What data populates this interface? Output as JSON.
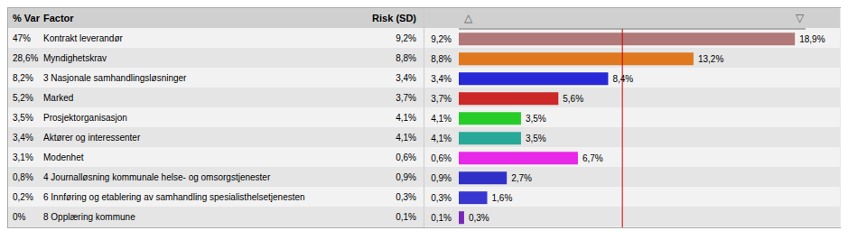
{
  "chart_data": {
    "type": "bar",
    "orientation": "horizontal",
    "columns": [
      "% Var",
      "Factor",
      "Risk (SD)"
    ],
    "header_marks": [
      "△",
      "▽"
    ],
    "categories": [
      "Kontrakt leverandør",
      "Myndighetskrav",
      "3 Nasjonale samhandlingsløsninger",
      "Marked",
      "Prosjektorganisasjon",
      "Aktører og interessenter",
      "Modenhet",
      "4 Journalløsning kommunale helse- og omsorgstjenester",
      "6 Innføring og etablering av samhandling spesialisthelsetjenesten",
      "8 Opplæring kommune"
    ],
    "pct_var": [
      "47%",
      "28,6%",
      "8,2%",
      "5,2%",
      "3,5%",
      "3,4%",
      "3,1%",
      "0,8%",
      "0,2%",
      "0%"
    ],
    "risk_sd": [
      "9,2%",
      "8,8%",
      "3,4%",
      "3,7%",
      "4,1%",
      "4,1%",
      "0,6%",
      "0,9%",
      "0,3%",
      "0,1%"
    ],
    "up_labels": [
      "9,2%",
      "8,8%",
      "3,4%",
      "3,7%",
      "4,1%",
      "4,1%",
      "0,6%",
      "0,9%",
      "0,3%",
      "0,1%"
    ],
    "values": [
      18.9,
      13.2,
      8.4,
      5.6,
      3.5,
      3.5,
      6.7,
      2.7,
      1.6,
      0.3
    ],
    "value_labels": [
      "18,9%",
      "13,2%",
      "8,4%",
      "5,6%",
      "3,5%",
      "3,5%",
      "6,7%",
      "2,7%",
      "1,6%",
      "0,3%"
    ],
    "colors": [
      "#b07878",
      "#e07820",
      "#2828d8",
      "#cc2828",
      "#28cc28",
      "#28a898",
      "#e828e8",
      "#3030c8",
      "#3838d0",
      "#7828b8"
    ],
    "data_labels": true,
    "xlim": [
      0,
      19.5
    ],
    "tick_labels": false,
    "grid": false,
    "reference_line": {
      "value": 9.2,
      "color": "#cc0000"
    }
  }
}
